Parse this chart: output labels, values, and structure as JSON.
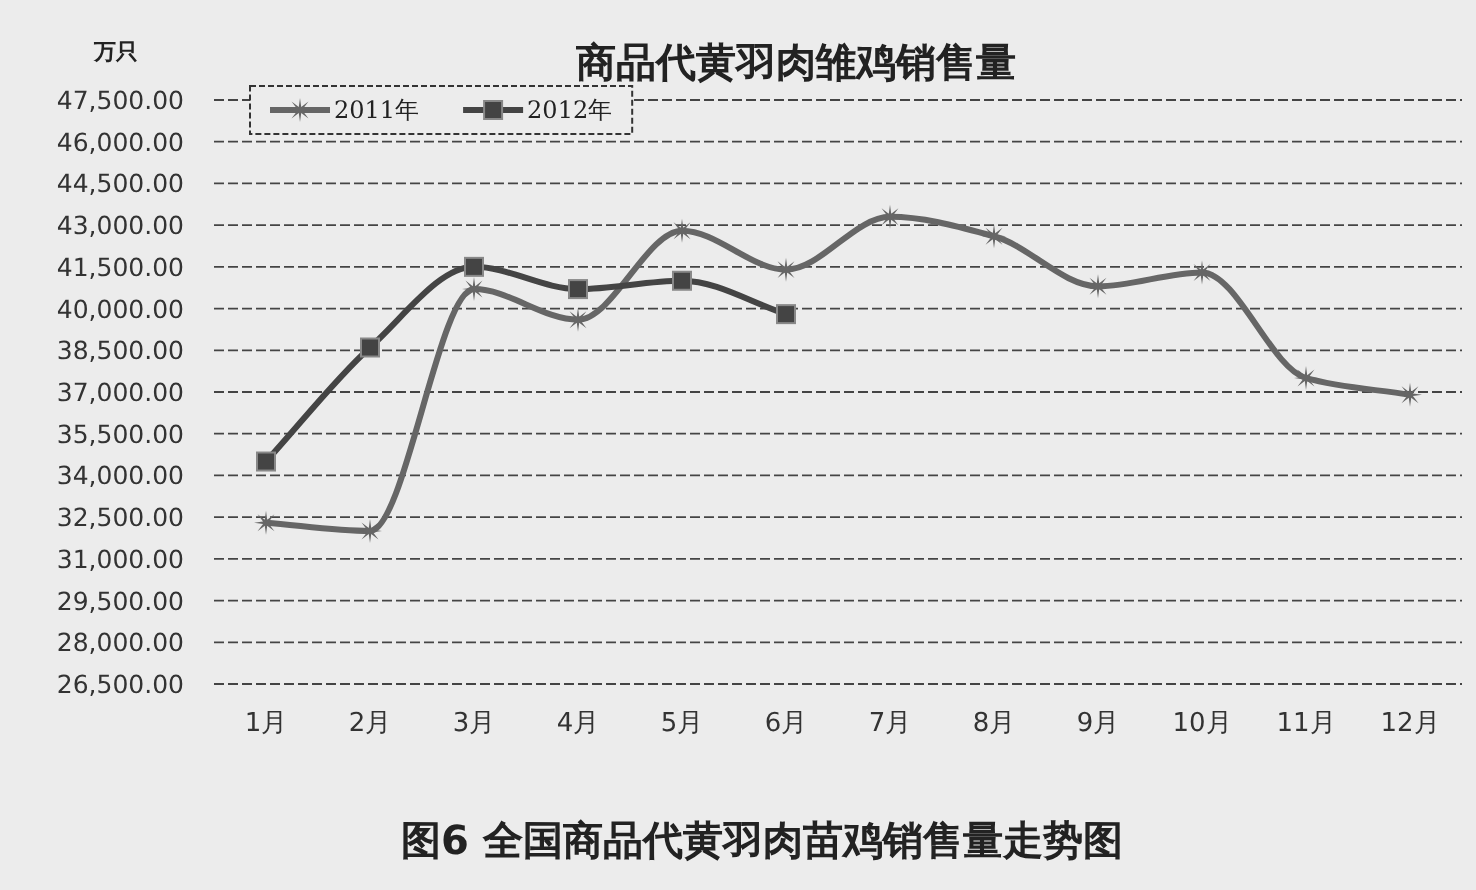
{
  "chart_data": {
    "type": "line",
    "title": "商品代黄羽肉雏鸡销售量",
    "ylabel": "万只",
    "categories": [
      "1月",
      "2月",
      "3月",
      "4月",
      "5月",
      "6月",
      "7月",
      "8月",
      "9月",
      "10月",
      "11月",
      "12月"
    ],
    "series": [
      {
        "name": "2011年",
        "color": "#666666",
        "marker": "star",
        "values": [
          32300,
          32000,
          40700,
          39600,
          42800,
          41400,
          43300,
          42600,
          40800,
          41300,
          37500,
          36900
        ]
      },
      {
        "name": "2012年",
        "color": "#444444",
        "marker": "square",
        "values": [
          34500,
          38600,
          41500,
          40700,
          41000,
          39800,
          null,
          null,
          null,
          null,
          null,
          null
        ]
      }
    ],
    "ylim": [
      26500,
      47500
    ],
    "yticks": [
      {
        "value": 26500,
        "label": "26,500.00"
      },
      {
        "value": 28000,
        "label": "28,000.00"
      },
      {
        "value": 29500,
        "label": "29,500.00"
      },
      {
        "value": 31000,
        "label": "31,000.00"
      },
      {
        "value": 32500,
        "label": "32,500.00"
      },
      {
        "value": 34000,
        "label": "34,000.00"
      },
      {
        "value": 35500,
        "label": "35,500.00"
      },
      {
        "value": 37000,
        "label": "37,000.00"
      },
      {
        "value": 38500,
        "label": "38,500.00"
      },
      {
        "value": 40000,
        "label": "40,000.00"
      },
      {
        "value": 41500,
        "label": "41,500.00"
      },
      {
        "value": 43000,
        "label": "43,000.00"
      },
      {
        "value": 44500,
        "label": "44,500.00"
      },
      {
        "value": 46000,
        "label": "46,000.00"
      },
      {
        "value": 47500,
        "label": "47,500.00"
      }
    ],
    "grid": "y",
    "legend": "top left",
    "line_style": "solid",
    "annotations": [
      "图6 全国商品代黄羽肉苗鸡销售量走势图"
    ]
  }
}
